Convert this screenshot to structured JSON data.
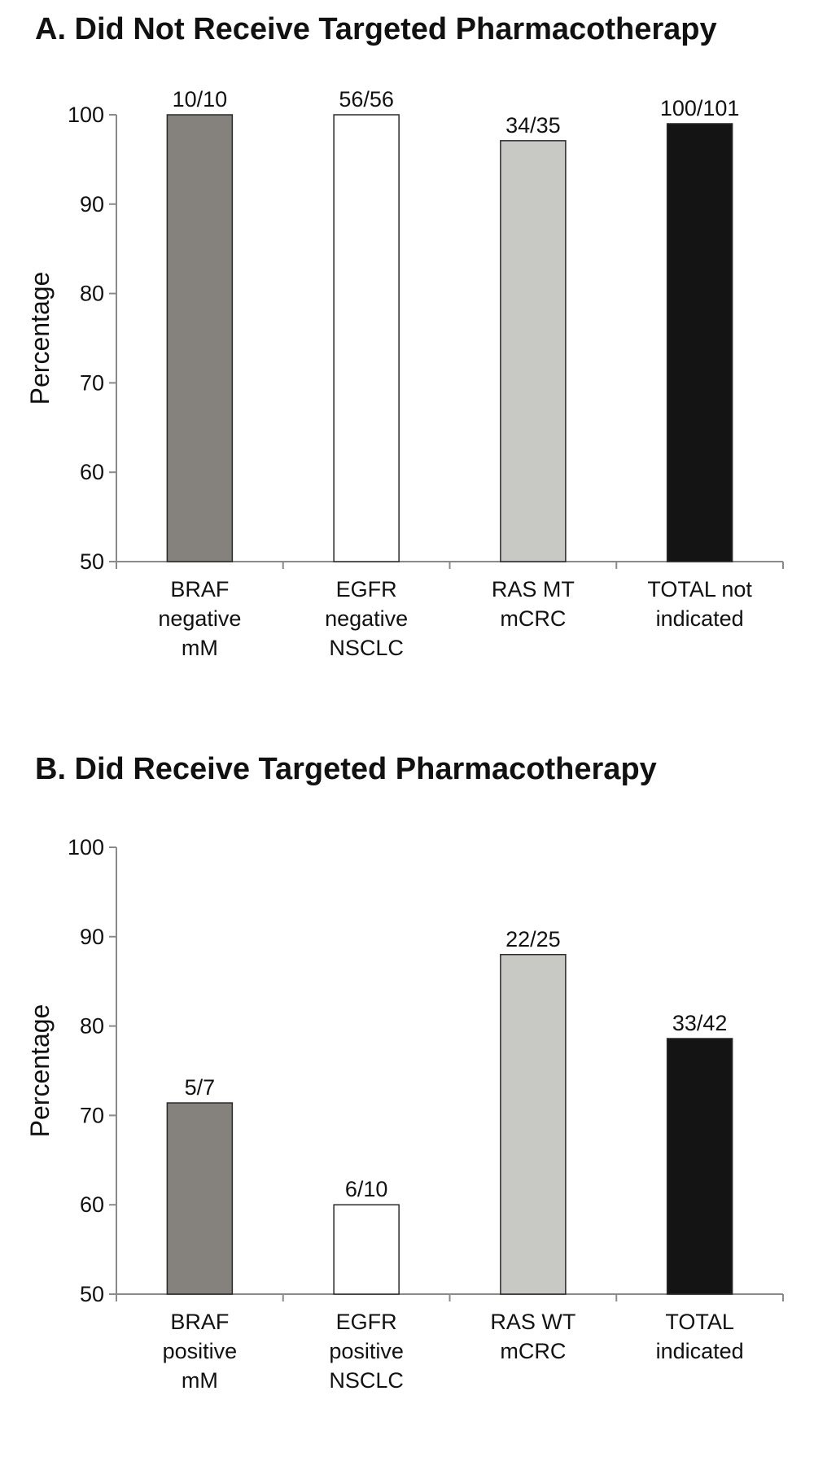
{
  "chart_data": [
    {
      "type": "bar",
      "title": "A. Did Not Receive Targeted Pharmacotherapy",
      "ylabel": "Percentage",
      "xlabel": "",
      "ylim": [
        50,
        100
      ],
      "yticks": [
        "50",
        "60",
        "70",
        "80",
        "90",
        "100"
      ],
      "grid": false,
      "categories": [
        [
          "BRAF",
          "negative",
          "mM"
        ],
        [
          "EGFR",
          "negative",
          "NSCLC"
        ],
        [
          "RAS MT",
          "mCRC"
        ],
        [
          "TOTAL not",
          "indicated"
        ]
      ],
      "values": [
        100,
        100,
        97.1,
        99.0
      ],
      "data_labels": [
        "10/10",
        "56/56",
        "34/35",
        "100/101"
      ],
      "colors": [
        "#85817c",
        "#ffffff",
        "#c8c8c5",
        "#141414"
      ]
    },
    {
      "type": "bar",
      "title": "B. Did Receive Targeted Pharmacotherapy",
      "ylabel": "Percentage",
      "xlabel": "",
      "ylim": [
        50,
        100
      ],
      "yticks": [
        "50",
        "60",
        "70",
        "80",
        "90",
        "100"
      ],
      "grid": false,
      "categories": [
        [
          "BRAF",
          "positive",
          "mM"
        ],
        [
          "EGFR",
          "positive",
          "NSCLC"
        ],
        [
          "RAS WT",
          "mCRC"
        ],
        [
          "TOTAL",
          "indicated"
        ]
      ],
      "values": [
        71.4,
        60.0,
        88.0,
        78.6
      ],
      "data_labels": [
        "5/7",
        "6/10",
        "22/25",
        "33/42"
      ],
      "colors": [
        "#85817c",
        "#ffffff",
        "#c8c8c5",
        "#141414"
      ]
    }
  ]
}
